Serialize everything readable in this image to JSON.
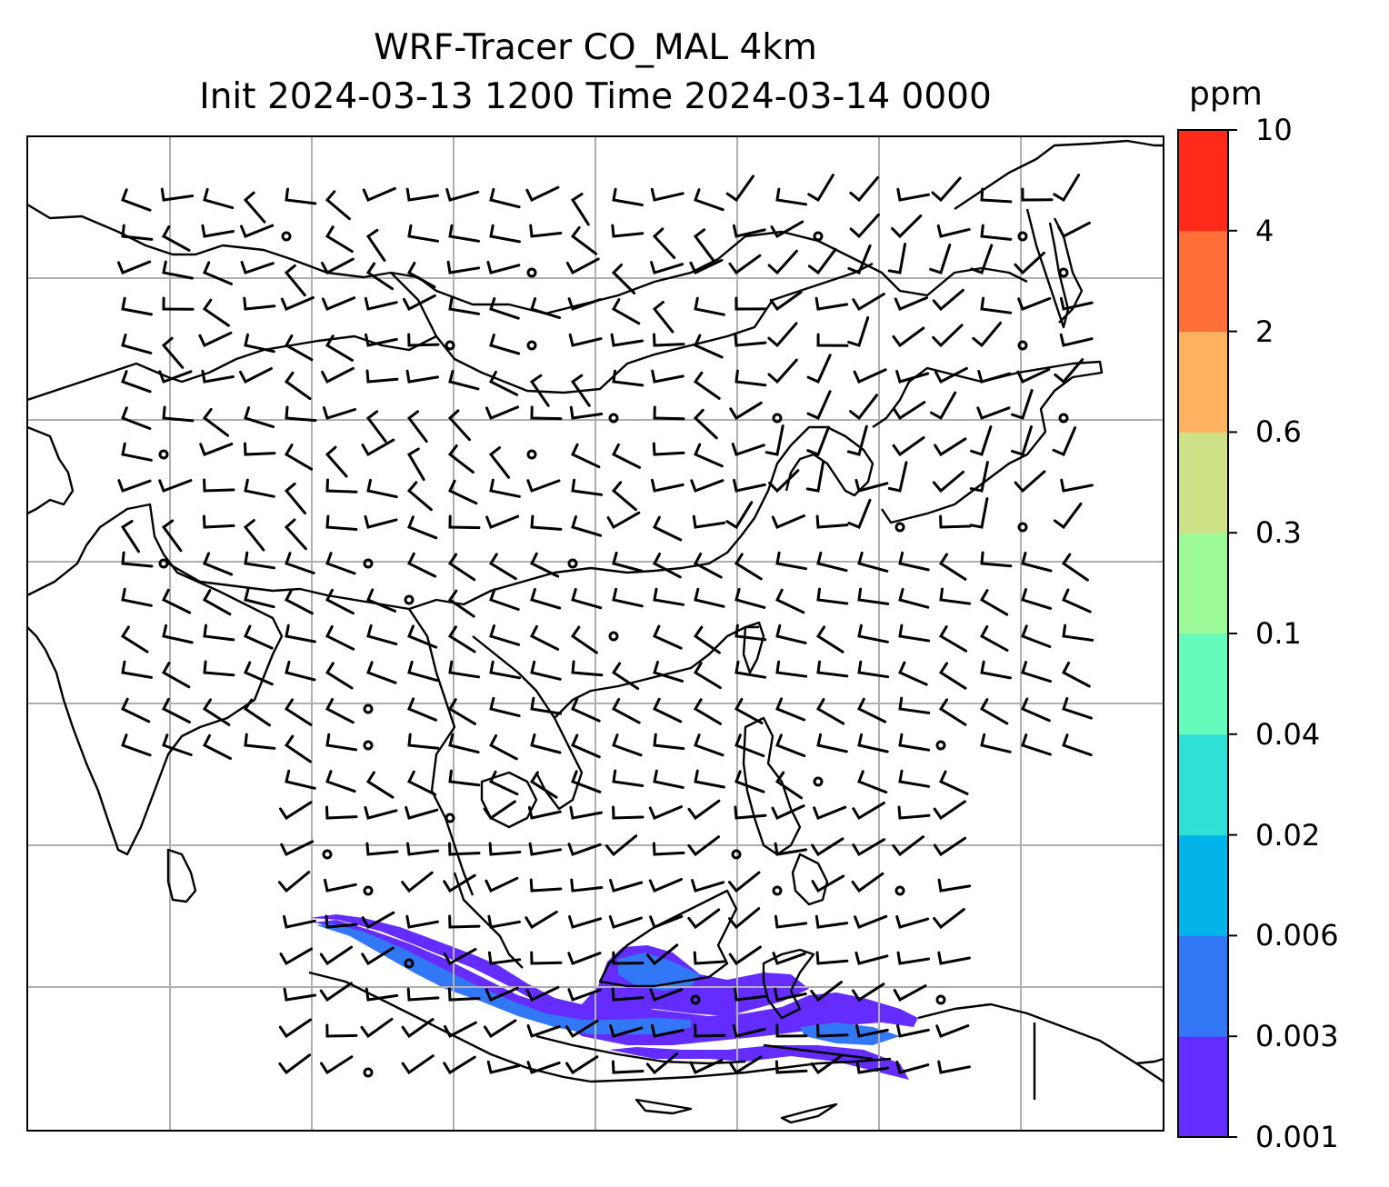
{
  "title": {
    "line1": "WRF-Tracer CO_MAL 4km",
    "line2": "Init 2024-03-13 1200 Time 2024-03-14 0000"
  },
  "map": {
    "projection": "regional (East/Southeast/South Asia)",
    "grid_lines": true,
    "coastlines_color": "#000000",
    "gridline_color": "#b0b0b0",
    "field": "CO_MAL tracer concentration",
    "field_location_description": "plume over Sumatra, Java Sea, Java, Borneo south coast and Lesser Sunda Islands",
    "wind_barbs": true
  },
  "colorbar": {
    "unit": "ppm",
    "levels": [
      "0.001",
      "0.003",
      "0.006",
      "0.02",
      "0.04",
      "0.1",
      "0.3",
      "0.6",
      "2",
      "4",
      "10"
    ],
    "colors": [
      "#652cff",
      "#3277f5",
      "#02b4ea",
      "#2fe0d4",
      "#66fbbd",
      "#9dfa99",
      "#cfe186",
      "#fdb262",
      "#fe6f3a",
      "#ff2a19"
    ]
  }
}
